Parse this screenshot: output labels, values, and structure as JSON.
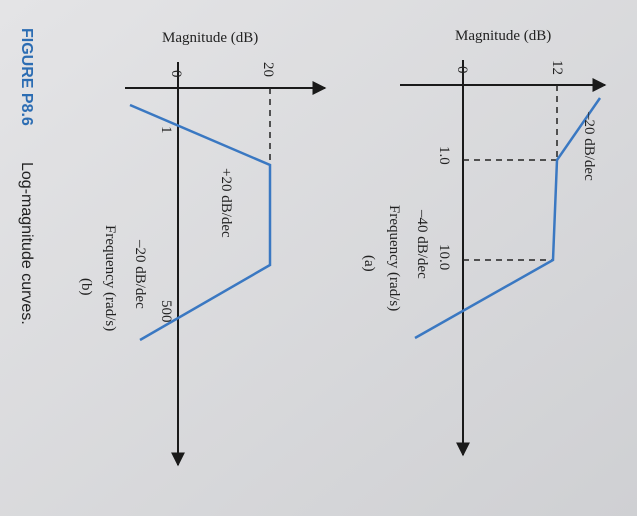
{
  "figure": {
    "a": {
      "y_label": "Magnitude (dB)",
      "y_ticks": [
        "0",
        "12"
      ],
      "x_ticks": [
        "1.0",
        "10.0"
      ],
      "slopes": [
        "–20 dB/dec",
        "–40 dB/dec"
      ],
      "x_label": "Frequency (rad/s)",
      "tag": "(a)"
    },
    "b": {
      "y_label": "Magnitude (dB)",
      "y_ticks": [
        "0",
        "20"
      ],
      "x_ticks": [
        "1",
        "500"
      ],
      "slopes": [
        "+20 dB/dec",
        "–20 dB/dec"
      ],
      "x_label": "Frequency (rad/s)",
      "tag": "(b)"
    },
    "caption": {
      "label": "FIGURE P8.6",
      "text": "Log-magnitude curves."
    }
  }
}
